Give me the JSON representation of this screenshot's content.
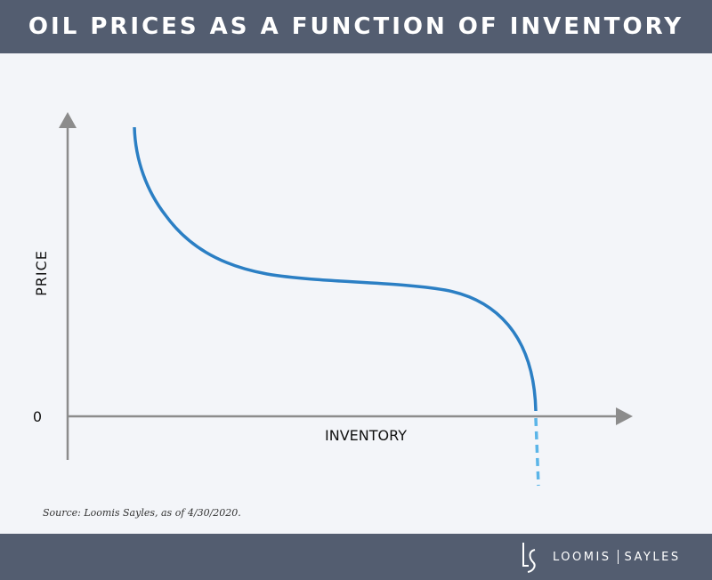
{
  "header": {
    "title": "OIL PRICES AS A FUNCTION OF INVENTORY"
  },
  "chart_data": {
    "type": "line",
    "title": "OIL PRICES AS A FUNCTION OF INVENTORY",
    "xlabel": "INVENTORY",
    "ylabel": "PRICE",
    "yticks": [
      "0"
    ],
    "grid": false,
    "series": [
      {
        "style": "solid",
        "color": "#2b7fc4",
        "description_shape": "steep decline, flat middle, steep decline to zero"
      },
      {
        "style": "dashed",
        "color": "#5bb5e8"
      }
    ],
    "axis_color": "#8c8c8c"
  },
  "source": "Source: Loomis Sayles, as of 4/30/2020.",
  "footer": {
    "brand_left": "LOOMIS",
    "brand_right": "SAYLES",
    "logo_letters": "LS"
  },
  "colors": {
    "bar": "#535d70",
    "background": "#f3f5f9"
  }
}
